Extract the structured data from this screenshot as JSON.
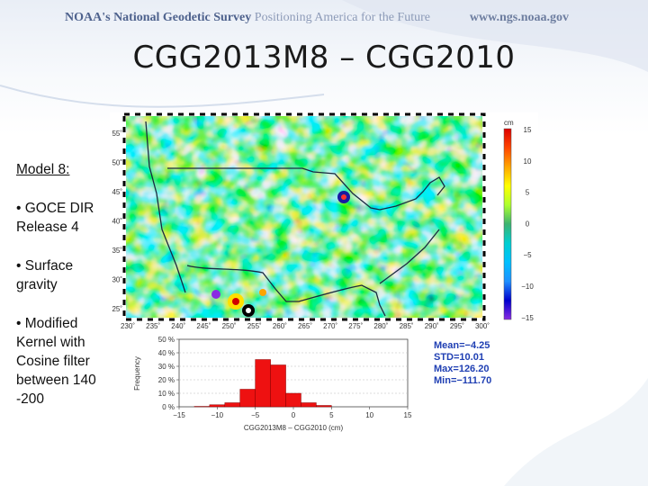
{
  "header": {
    "brand_prefix": "NOAA's",
    "brand_name": "National Geodetic Survey",
    "brand_tagline": "Positioning America for the Future",
    "url": "www.ngs.noaa.gov"
  },
  "title": "CGG2013M8 – CGG2010",
  "bullets": [
    {
      "text": "Model 8:"
    },
    {
      "text": "• GOCE DIR Release 4"
    },
    {
      "text": "• Surface gravity"
    },
    {
      "text": "• Modified Kernel with Cosine filter between 140 -200"
    }
  ],
  "map": {
    "lat_ticks": [
      "55˚",
      "50˚",
      "45˚",
      "40˚",
      "35˚",
      "30˚",
      "25˚"
    ],
    "lon_ticks": [
      "230˚",
      "235˚",
      "240˚",
      "245˚",
      "250˚",
      "255˚",
      "260˚",
      "265˚",
      "270˚",
      "275˚",
      "280˚",
      "285˚",
      "290˚",
      "295˚",
      "300˚"
    ]
  },
  "colorbar": {
    "unit": "cm",
    "ticks": [
      "15",
      "10",
      "5",
      "0",
      "−5",
      "−10",
      "−15"
    ],
    "range": [
      -15,
      15
    ],
    "colors": [
      "#8a2be2",
      "#0000cd",
      "#1e90ff",
      "#00bfff",
      "#00ced1",
      "#3cb371",
      "#adff2f",
      "#ffff00",
      "#ffa500",
      "#ff4500",
      "#dc0000"
    ]
  },
  "stats": {
    "mean": "Mean=−4.25",
    "std": "STD=10.01",
    "max": "Max=126.20",
    "min": "Min=−111.70"
  },
  "chart_data": {
    "type": "bar",
    "xlabel": "CGG2013M8 – CGG2010 (cm)",
    "ylabel": "Frequency",
    "x_ticks": [
      "−15",
      "−10",
      "−5",
      "0",
      "5",
      "10",
      "15"
    ],
    "y_ticks": [
      "0 %",
      "10 %",
      "20 %",
      "30 %",
      "40 %",
      "50 %"
    ],
    "xlim": [
      -15,
      15
    ],
    "ylim": [
      0,
      50
    ],
    "bin_width": 2,
    "bins": [
      {
        "start": -13,
        "value": 0.3
      },
      {
        "start": -11,
        "value": 1.5
      },
      {
        "start": -9,
        "value": 3
      },
      {
        "start": -7,
        "value": 13
      },
      {
        "start": -5,
        "value": 35
      },
      {
        "start": -3,
        "value": 31
      },
      {
        "start": -1,
        "value": 10
      },
      {
        "start": 1,
        "value": 3
      },
      {
        "start": 3,
        "value": 1
      }
    ],
    "bar_color": "#ee1111"
  }
}
